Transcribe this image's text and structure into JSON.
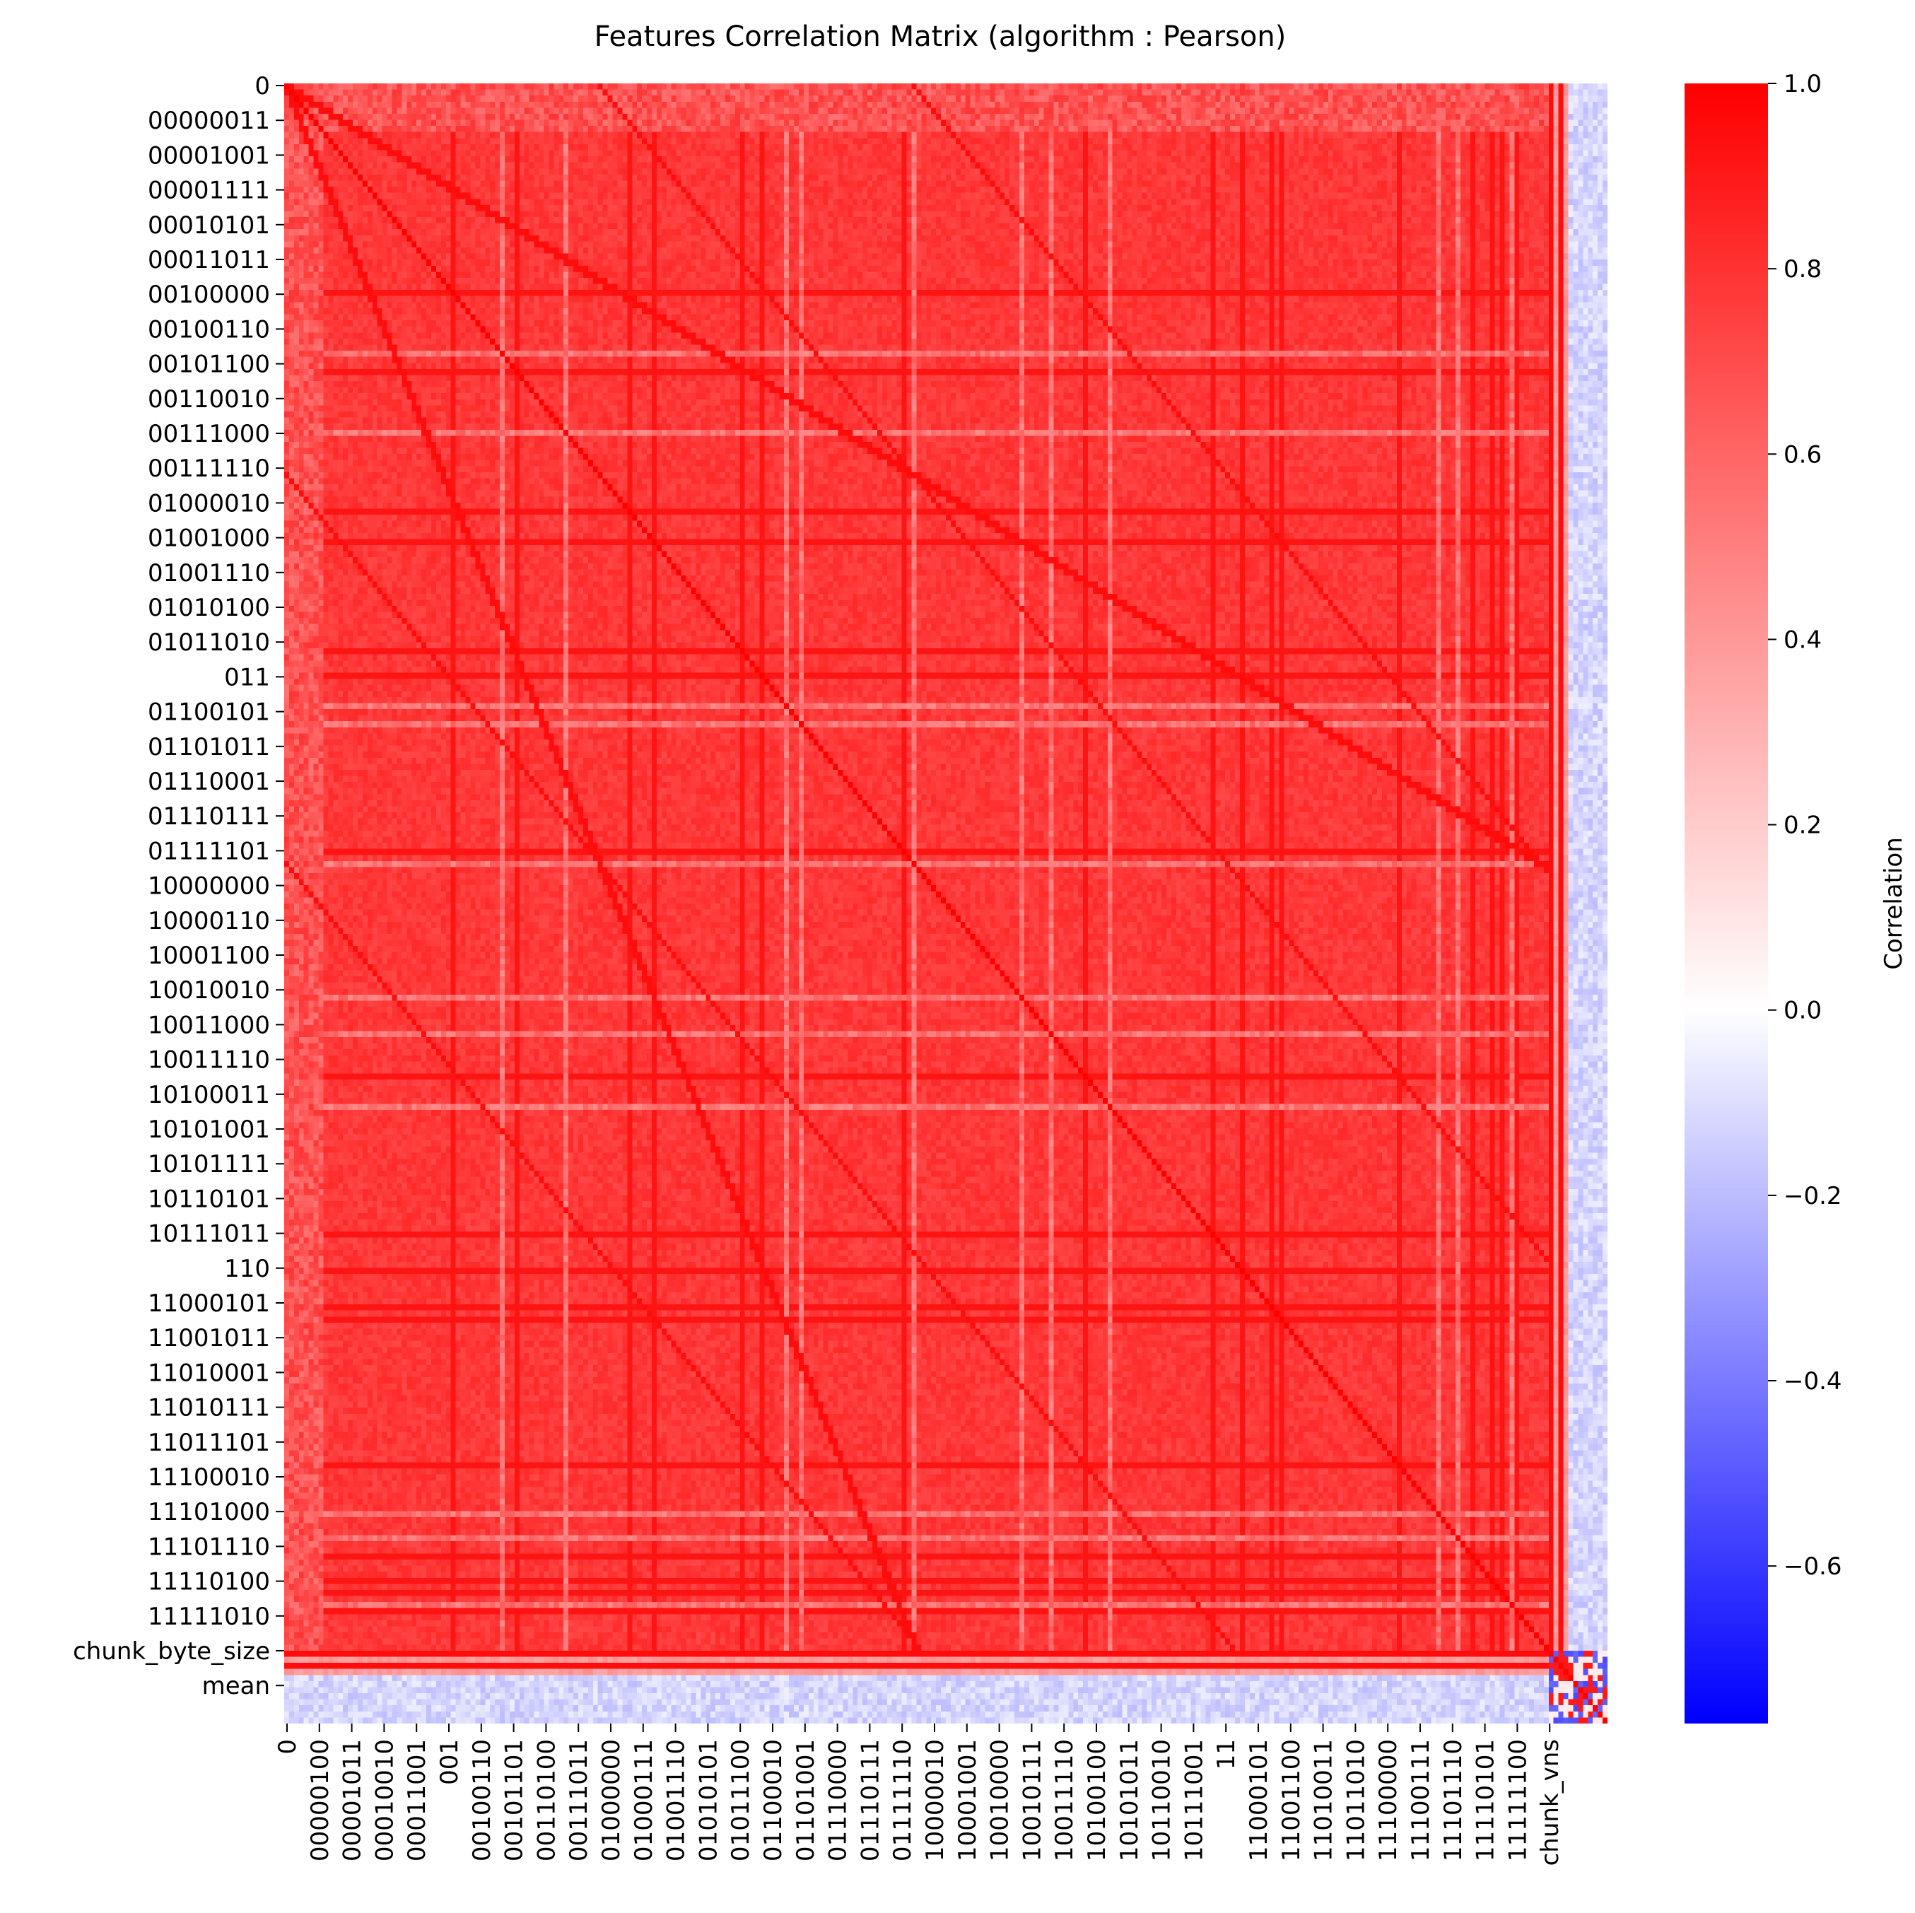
{
  "chart_data": {
    "type": "heatmap",
    "title": "Features Correlation Matrix (algorithm : Pearson)",
    "colorbar": {
      "label": "Correlation",
      "range": [
        -0.77,
        1.0
      ],
      "ticks": [
        "1.0",
        "0.8",
        "0.6",
        "0.4",
        "0.2",
        "0.0",
        "−0.2",
        "−0.4",
        "−0.6"
      ],
      "tick_values": [
        1.0,
        0.8,
        0.6,
        0.4,
        0.2,
        0.0,
        -0.2,
        -0.4,
        -0.6
      ],
      "colors": {
        "high": "#ff0000",
        "mid": "#ffffff",
        "low": "#0000ff"
      }
    },
    "y_tick_labels": [
      "0",
      "00000011",
      "00001001",
      "00001111",
      "00010101",
      "00011011",
      "00100000",
      "00100110",
      "00101100",
      "00110010",
      "00111000",
      "00111110",
      "01000010",
      "01001000",
      "01001110",
      "01010100",
      "01011010",
      "011",
      "01100101",
      "01101011",
      "01110001",
      "01110111",
      "01111101",
      "10000000",
      "10000110",
      "10001100",
      "10010010",
      "10011000",
      "10011110",
      "10100011",
      "10101001",
      "10101111",
      "10110101",
      "10111011",
      "110",
      "11000101",
      "11001011",
      "11010001",
      "11010111",
      "11011101",
      "11100010",
      "11101000",
      "11101110",
      "11110100",
      "11111010",
      "chunk_byte_size",
      "mean"
    ],
    "x_tick_labels": [
      "0",
      "00000100",
      "00001011",
      "00010010",
      "00011001",
      "001",
      "00100110",
      "00101101",
      "00110100",
      "00111011",
      "01000000",
      "01000111",
      "01001110",
      "01010101",
      "01011100",
      "01100010",
      "01101001",
      "01110000",
      "01110111",
      "01111110",
      "10000010",
      "10001001",
      "10010000",
      "10010111",
      "10011110",
      "10100100",
      "10101011",
      "10110010",
      "10111001",
      "11",
      "11000101",
      "11001100",
      "11010011",
      "11011010",
      "11100000",
      "11100111",
      "11101110",
      "11110101",
      "11111100",
      "chunk_vns"
    ],
    "n_features": 270,
    "value_pattern": {
      "diagonal": 1.0,
      "binary_feature_block_typical": 0.8,
      "summary_rows_vs_binary_features_typical": -0.05,
      "summary_rows_min": -0.77
    }
  }
}
